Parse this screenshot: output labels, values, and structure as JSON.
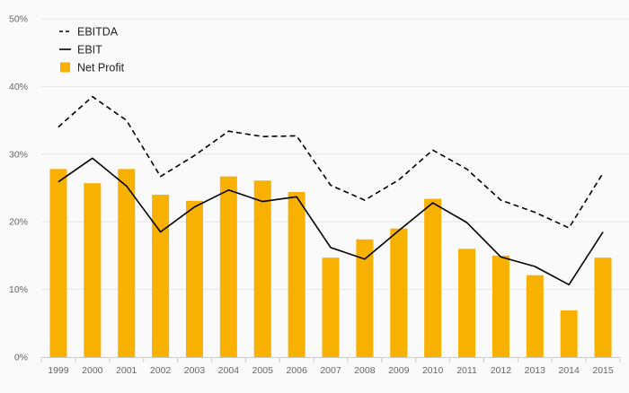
{
  "chart_data": {
    "type": "bar",
    "categories": [
      "1999",
      "2000",
      "2001",
      "2002",
      "2003",
      "2004",
      "2005",
      "2006",
      "2007",
      "2008",
      "2009",
      "2010",
      "2011",
      "2012",
      "2013",
      "2014",
      "2015"
    ],
    "y_ticks": [
      "0%",
      "10%",
      "20%",
      "30%",
      "40%",
      "50%"
    ],
    "ylim": [
      0,
      50
    ],
    "y_unit": "%",
    "grid": true,
    "legend_position": "top-left",
    "series": [
      {
        "name": "EBITDA",
        "kind": "line",
        "style": "dashed",
        "color": "#000000",
        "values": [
          34.0,
          38.5,
          35.0,
          26.7,
          29.8,
          33.4,
          32.6,
          32.7,
          25.4,
          23.2,
          26.2,
          30.6,
          27.8,
          23.2,
          21.4,
          19.1,
          27.2
        ]
      },
      {
        "name": "EBIT",
        "kind": "line",
        "style": "solid",
        "color": "#000000",
        "values": [
          25.9,
          29.4,
          25.3,
          18.5,
          22.2,
          24.7,
          23.0,
          23.7,
          16.2,
          14.5,
          18.7,
          22.8,
          19.9,
          14.8,
          13.4,
          10.7,
          18.5
        ]
      },
      {
        "name": "Net Profit",
        "kind": "bar",
        "color": "#f8b100",
        "values": [
          27.8,
          25.7,
          27.8,
          24.0,
          23.1,
          26.7,
          26.1,
          24.4,
          14.7,
          17.4,
          19.0,
          23.4,
          16.0,
          15.0,
          12.1,
          6.9,
          14.7
        ]
      }
    ]
  }
}
